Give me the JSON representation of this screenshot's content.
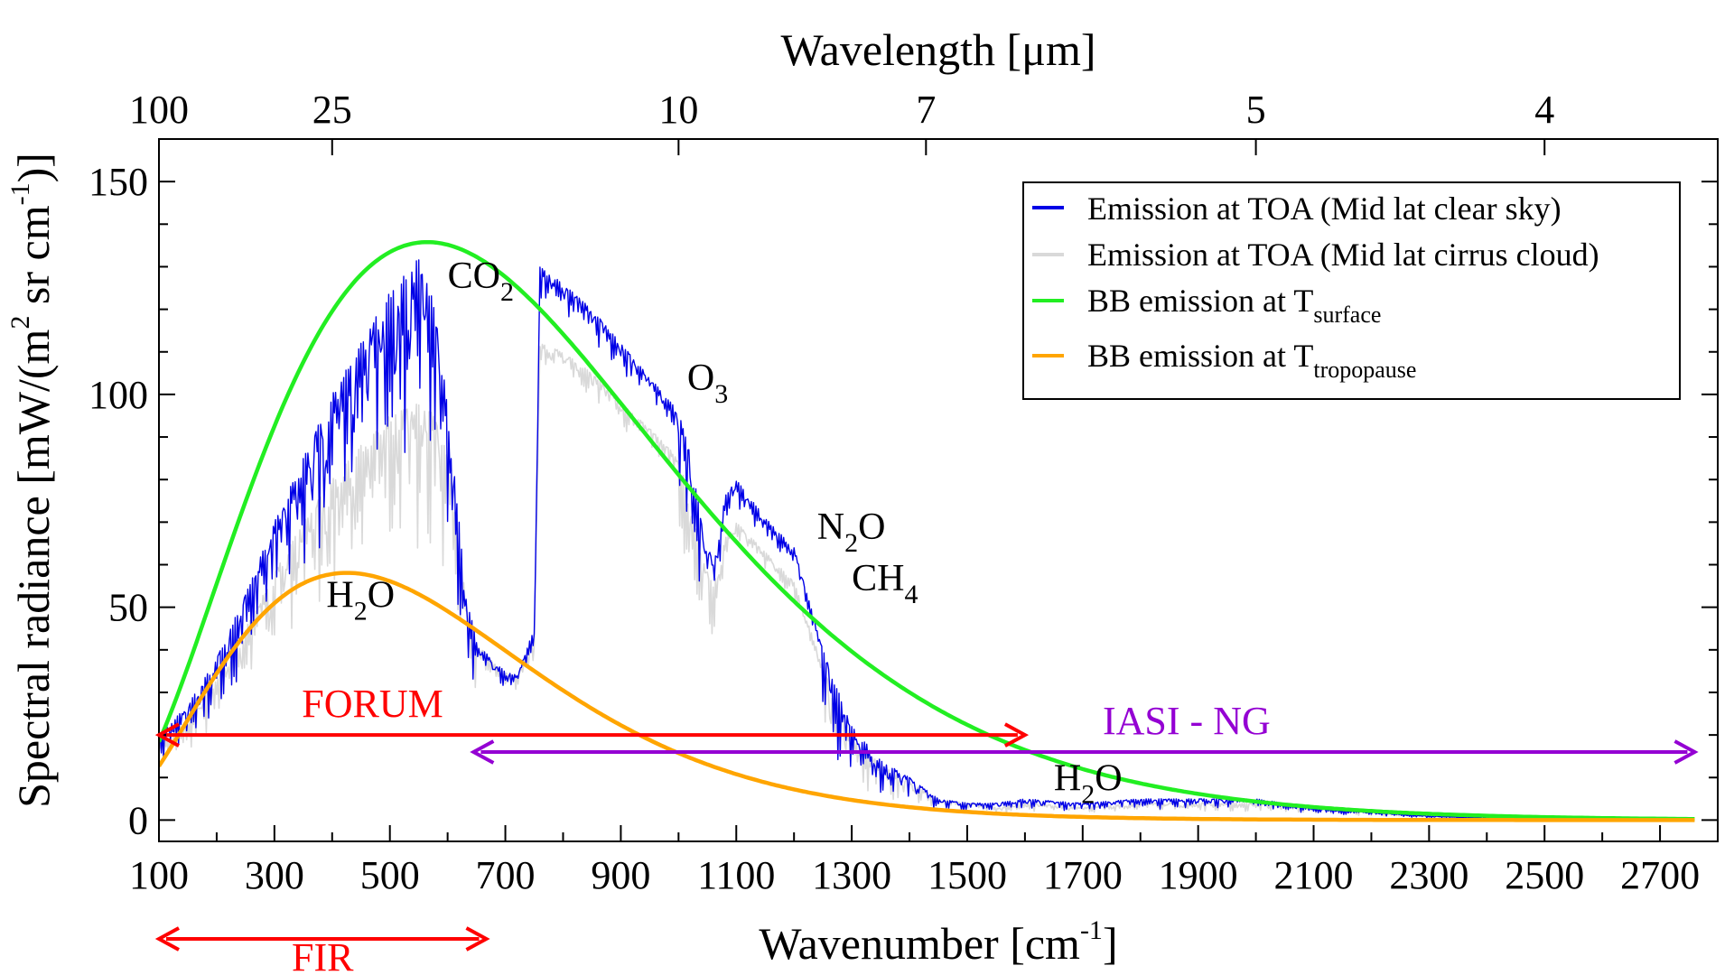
{
  "chart_data": {
    "type": "line",
    "xlabel": "Wavenumber [cm",
    "xlabel_sup": "-1",
    "xlabel_end": "]",
    "x2label": "Wavelength [μm]",
    "ylabel": "Spectral radiance [mW/(m",
    "ylabel_sup1": "2",
    "ylabel_mid": " sr cm",
    "ylabel_sup2": "-1",
    "ylabel_end": ")]",
    "xlim": [
      100,
      2800
    ],
    "ylim": [
      -5,
      160
    ],
    "x_ticks": [
      100,
      300,
      500,
      700,
      900,
      1100,
      1300,
      1500,
      1700,
      1900,
      2100,
      2300,
      2500,
      2700
    ],
    "x_tick_labels": [
      "100",
      "300",
      "500",
      "700",
      "900",
      "1100",
      "1300",
      "1500",
      "1700",
      "1900",
      "2100",
      "2300",
      "2500",
      "2700"
    ],
    "y_ticks": [
      0,
      50,
      100,
      150
    ],
    "y_tick_labels": [
      "0",
      "50",
      "100",
      "150"
    ],
    "top_ticks": [
      {
        "wavenumber": 100,
        "label": "100"
      },
      {
        "wavenumber": 400,
        "label": "25"
      },
      {
        "wavenumber": 1000,
        "label": "10"
      },
      {
        "wavenumber": 1428.6,
        "label": "7"
      },
      {
        "wavenumber": 2000,
        "label": "5"
      },
      {
        "wavenumber": 2500,
        "label": "4"
      }
    ],
    "legend_placement": "top-right",
    "grid": false,
    "series": [
      {
        "name": "Emission at TOA (Mid lat clear sky)",
        "color": "#0000e6",
        "style": "spectrum",
        "x": [
          100,
          150,
          200,
          250,
          300,
          350,
          400,
          450,
          500,
          550,
          580,
          610,
          630,
          650,
          680,
          700,
          720,
          750,
          760,
          800,
          850,
          900,
          950,
          1000,
          1020,
          1040,
          1060,
          1080,
          1100,
          1150,
          1200,
          1250,
          1300,
          1350,
          1400,
          1450,
          1500,
          1550,
          1600,
          1700,
          1800,
          1900,
          2000,
          2100,
          2200,
          2300,
          2400,
          2500,
          2600,
          2700,
          2760
        ],
        "y": [
          20,
          27,
          38,
          53,
          70,
          85,
          100,
          112,
          124,
          132,
          120,
          85,
          55,
          42,
          37,
          35,
          34,
          45,
          130,
          126,
          120,
          112,
          104,
          96,
          86,
          70,
          60,
          76,
          80,
          71,
          64,
          40,
          22,
          14,
          10,
          5,
          4,
          4,
          5,
          4,
          5,
          5,
          5,
          3,
          2,
          1,
          0.5,
          0.3,
          0.2,
          0.1,
          0.1
        ]
      },
      {
        "name": "Emission at TOA (Mid lat cirrus cloud)",
        "color": "#d9d9d9",
        "style": "spectrum",
        "x": [
          100,
          150,
          200,
          250,
          300,
          350,
          400,
          450,
          500,
          550,
          580,
          610,
          630,
          650,
          680,
          700,
          720,
          750,
          760,
          800,
          850,
          900,
          950,
          1000,
          1020,
          1040,
          1060,
          1080,
          1100,
          1150,
          1200,
          1250,
          1300,
          1350,
          1400,
          1450,
          1500,
          1550,
          1600,
          1700,
          1800,
          1900,
          2000,
          2100,
          2200,
          2300,
          2400,
          2500,
          2600,
          2700,
          2760
        ],
        "y": [
          18,
          24,
          33,
          45,
          58,
          70,
          80,
          88,
          95,
          98,
          95,
          80,
          55,
          42,
          37,
          35,
          34,
          42,
          112,
          110,
          105,
          98,
          92,
          85,
          75,
          62,
          55,
          66,
          70,
          63,
          56,
          36,
          20,
          13,
          9,
          5,
          4,
          3,
          4,
          3,
          4,
          4,
          4,
          3,
          2,
          1,
          0.5,
          0.3,
          0.2,
          0.1,
          0.1
        ]
      },
      {
        "name": "BB emission at T",
        "name_sub": "surface",
        "color": "#22ee22",
        "style": "planck",
        "temperature_K": 288
      },
      {
        "name": "BB emission at T",
        "name_sub": "tropopause",
        "color": "#ffa500",
        "style": "planck",
        "temperature_K": 217
      }
    ],
    "annotations": [
      {
        "text": "CO",
        "sub": "2",
        "x": 600,
        "y": 125
      },
      {
        "text": "O",
        "sub": "3",
        "x": 1015,
        "y": 101
      },
      {
        "text": "N",
        "sub": "2",
        "tail": "O",
        "x": 1240,
        "y": 66
      },
      {
        "text": "CH",
        "sub": "4",
        "x": 1300,
        "y": 54
      },
      {
        "text": "H",
        "sub": "2",
        "tail": "O",
        "x": 390,
        "y": 50
      },
      {
        "text": "H",
        "sub": "2",
        "tail": "O",
        "x": 1650,
        "y": 7
      }
    ],
    "ranges": [
      {
        "label": "FORUM",
        "start": 100,
        "end": 1600,
        "y": 20,
        "color": "#ff0000"
      },
      {
        "label": "IASI - NG",
        "start": 645,
        "end": 2760,
        "y": 16,
        "color": "#9400d3"
      },
      {
        "label": "FIR",
        "start": 100,
        "end": 667,
        "below_axis": true,
        "color": "#ff0000"
      }
    ]
  }
}
